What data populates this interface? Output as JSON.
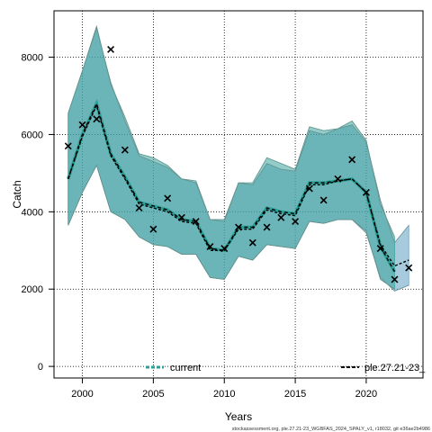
{
  "chart_data": {
    "type": "line",
    "xlabel": "Years",
    "ylabel": "Catch",
    "xlim": [
      1998,
      2024
    ],
    "ylim": [
      -300,
      9200
    ],
    "x_ticks": [
      2000,
      2005,
      2010,
      2015,
      2020
    ],
    "y_ticks": [
      0,
      2000,
      4000,
      6000,
      8000
    ],
    "grid": true,
    "colors": {
      "band_current": "#3aa39a",
      "band_other": "#5f9fbf",
      "line": "#000000",
      "median_current": "#2aa198",
      "observed": "#000000"
    },
    "series": [
      {
        "name": "current",
        "x": [
          1999,
          2000,
          2001,
          2002,
          2003,
          2004,
          2005,
          2006,
          2007,
          2008,
          2009,
          2010,
          2011,
          2012,
          2013,
          2014,
          2015,
          2016,
          2017,
          2018,
          2019,
          2020,
          2021,
          2022
        ],
        "median": [
          4850,
          6000,
          6800,
          5500,
          4900,
          4250,
          4150,
          4050,
          3800,
          3750,
          3050,
          3000,
          3600,
          3600,
          4100,
          4000,
          3950,
          4750,
          4750,
          4800,
          4850,
          4500,
          3100,
          2450
        ],
        "lower": [
          3650,
          4500,
          5200,
          4000,
          3800,
          3350,
          3150,
          3100,
          2900,
          2900,
          2300,
          2250,
          2850,
          2750,
          3150,
          3100,
          3050,
          3750,
          3700,
          3800,
          3800,
          3500,
          2250,
          2000
        ],
        "upper": [
          6550,
          7650,
          8800,
          7300,
          6450,
          5500,
          5400,
          5200,
          4850,
          4800,
          3800,
          3800,
          4750,
          4750,
          5400,
          5250,
          5100,
          6200,
          6100,
          6150,
          6350,
          5850,
          4200,
          3350
        ]
      },
      {
        "name": "ple.27.21-23_",
        "x": [
          1999,
          2000,
          2001,
          2002,
          2003,
          2004,
          2005,
          2006,
          2007,
          2008,
          2009,
          2010,
          2011,
          2012,
          2013,
          2014,
          2015,
          2016,
          2017,
          2018,
          2019,
          2020,
          2021,
          2022,
          2023
        ],
        "median": [
          4850,
          5950,
          6750,
          5450,
          4850,
          4200,
          4100,
          4000,
          3750,
          3700,
          3000,
          3000,
          3550,
          3550,
          4050,
          3950,
          3900,
          4700,
          4700,
          4800,
          4850,
          4500,
          3150,
          2600,
          2750
        ],
        "lower": [
          3650,
          4500,
          5200,
          4000,
          3800,
          3350,
          3150,
          3100,
          2900,
          2900,
          2300,
          2250,
          2850,
          2750,
          3150,
          3100,
          3050,
          3750,
          3700,
          3800,
          3800,
          3450,
          2300,
          1950,
          2100
        ],
        "upper": [
          6550,
          7650,
          8750,
          7350,
          6350,
          5450,
          5300,
          5150,
          4850,
          4750,
          3800,
          3750,
          4750,
          4700,
          5250,
          5100,
          5050,
          6100,
          6000,
          6150,
          6250,
          5800,
          4300,
          3200,
          3650
        ]
      }
    ],
    "observed": {
      "x": [
        1999,
        2000,
        2001,
        2002,
        2003,
        2004,
        2005,
        2006,
        2007,
        2008,
        2009,
        2010,
        2011,
        2012,
        2013,
        2014,
        2015,
        2016,
        2017,
        2018,
        2019,
        2020,
        2021,
        2022,
        2023
      ],
      "y": [
        5700,
        6250,
        6400,
        8200,
        5600,
        4100,
        3550,
        4350,
        3850,
        3750,
        3100,
        3050,
        3600,
        3200,
        3600,
        3850,
        3750,
        4600,
        4300,
        4850,
        5350,
        4500,
        3050,
        2250,
        2550
      ]
    },
    "legend": [
      {
        "label": "current",
        "position": "bottom-center"
      },
      {
        "label": "ple.27.21-23_",
        "position": "bottom-right"
      }
    ],
    "source_text": "stockassessment.org, ple.27.21-23_WGBFAS_2024_SPALY_v1, r18032, git e36ae2b4986"
  }
}
